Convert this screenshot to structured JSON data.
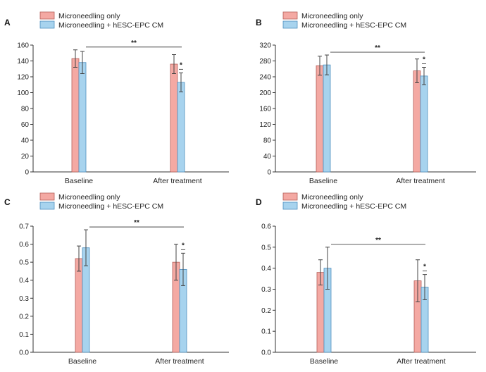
{
  "colors": {
    "series1": "#f4a9a3",
    "series1_edge": "#b45e58",
    "series2": "#a7d3ee",
    "series2_edge": "#4f8fbf"
  },
  "legend": [
    "Microneedling only",
    "Microneedling + hESC-EPC CM"
  ],
  "chart_data": [
    {
      "panel": "A",
      "type": "bar",
      "categories": [
        "Baseline",
        "After treatment"
      ],
      "series": [
        {
          "name": "Microneedling only",
          "values": [
            143,
            136
          ],
          "errors": [
            11,
            12
          ]
        },
        {
          "name": "Microneedling + hESC-EPC CM",
          "values": [
            138,
            113
          ],
          "errors": [
            14,
            12
          ]
        }
      ],
      "ylim": [
        0,
        160
      ],
      "yticks": [
        0,
        20,
        40,
        60,
        80,
        100,
        120,
        140,
        160
      ],
      "ytick_labels": [
        "0",
        "20",
        "40",
        "60",
        "80",
        "100",
        "120",
        "140",
        "160"
      ],
      "significance": {
        "between_groups": "**",
        "within_after": "*"
      }
    },
    {
      "panel": "B",
      "type": "bar",
      "categories": [
        "Baseline",
        "After treatment"
      ],
      "series": [
        {
          "name": "Microneedling only",
          "values": [
            268,
            255
          ],
          "errors": [
            24,
            30
          ]
        },
        {
          "name": "Microneedling + hESC-EPC CM",
          "values": [
            270,
            242
          ],
          "errors": [
            25,
            22
          ]
        }
      ],
      "ylim": [
        0,
        320
      ],
      "yticks": [
        0,
        40,
        80,
        120,
        160,
        200,
        240,
        280,
        320
      ],
      "ytick_labels": [
        "0",
        "40",
        "80",
        "120",
        "160",
        "200",
        "240",
        "280",
        "320"
      ],
      "significance": {
        "between_groups": "**",
        "within_after": "*"
      }
    },
    {
      "panel": "C",
      "type": "bar",
      "categories": [
        "Baseline",
        "After treatment"
      ],
      "series": [
        {
          "name": "Microneedling only",
          "values": [
            0.52,
            0.5
          ],
          "errors": [
            0.07,
            0.1
          ]
        },
        {
          "name": "Microneedling + hESC-EPC CM",
          "values": [
            0.58,
            0.46
          ],
          "errors": [
            0.1,
            0.09
          ]
        }
      ],
      "ylim": [
        0,
        0.7
      ],
      "yticks": [
        0,
        0.1,
        0.2,
        0.3,
        0.4,
        0.5,
        0.6,
        0.7
      ],
      "ytick_labels": [
        "0.0",
        "0.1",
        "0.2",
        "0.3",
        "0.4",
        "0.5",
        "0.6",
        "0.7"
      ],
      "significance": {
        "between_groups": "**",
        "within_after": "*"
      }
    },
    {
      "panel": "D",
      "type": "bar",
      "categories": [
        "Baseline",
        "After treatment"
      ],
      "series": [
        {
          "name": "Microneedling only",
          "values": [
            0.38,
            0.34
          ],
          "errors": [
            0.06,
            0.1
          ]
        },
        {
          "name": "Microneedling + hESC-EPC CM",
          "values": [
            0.4,
            0.31
          ],
          "errors": [
            0.1,
            0.06
          ]
        }
      ],
      "ylim": [
        0,
        0.6
      ],
      "yticks": [
        0,
        0.1,
        0.2,
        0.3,
        0.4,
        0.5,
        0.6
      ],
      "ytick_labels": [
        "0.0",
        "0.1",
        "0.2",
        "0.3",
        "0.4",
        "0.5",
        "0.6"
      ],
      "significance": {
        "between_groups": "**",
        "within_after": "*"
      }
    }
  ]
}
